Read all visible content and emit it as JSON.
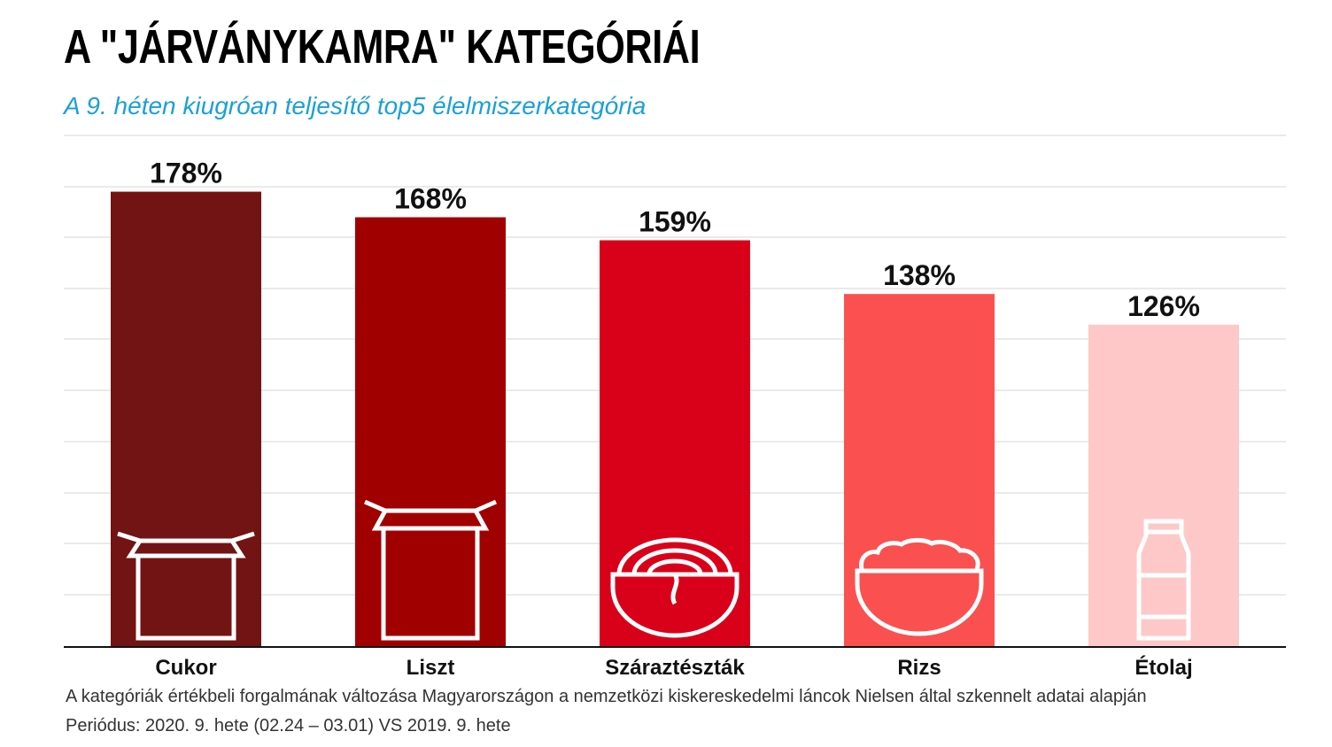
{
  "title": "A \"JÁRVÁNYKAMRA\" KATEGÓRIÁI",
  "subtitle": "A 9. héten kiugróan teljesítő top5 élelmiszerkategória",
  "footnote": {
    "line1": "A kategóriák értékbeli forgalmának változása Magyarországon a nemzetközi kiskereskedelmi láncok Nielsen által szkennelt adatai alapján",
    "line2": "Periódus: 2020. 9. hete (02.24 – 03.01) VS 2019. 9. hete"
  },
  "chart_data": {
    "type": "bar",
    "categories": [
      "Cukor",
      "Liszt",
      "Száraztészták",
      "Rizs",
      "Étolaj"
    ],
    "values": [
      178,
      168,
      159,
      138,
      126
    ],
    "value_labels": [
      "178%",
      "168%",
      "159%",
      "138%",
      "126%"
    ],
    "title": "",
    "xlabel": "",
    "ylabel": "",
    "ylim": [
      0,
      180
    ],
    "grid": true,
    "bar_colors": [
      "#731414",
      "#a00000",
      "#d9001a",
      "#fb5050",
      "#fec8c8"
    ],
    "icons": [
      "open-box-icon",
      "tall-box-icon",
      "noodle-bowl-icon",
      "rice-bowl-icon",
      "oil-bottle-icon"
    ]
  }
}
